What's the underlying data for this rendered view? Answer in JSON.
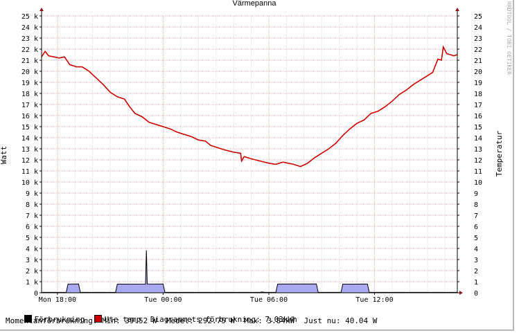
{
  "chart_data": {
    "type": "line",
    "title": "Värmepanna",
    "ylabel_left": "Watt",
    "ylabel_right": "Temperatur",
    "watermark": "RRDTOOL / TOBI OETIKER",
    "x_ticks": [
      "Mon 18:00",
      "Tue 00:00",
      "Tue 06:00",
      "Tue 12:00"
    ],
    "x_tick_hours": [
      18,
      24,
      30,
      36
    ],
    "x_range_hours": [
      17.1,
      40.7
    ],
    "left_axis": {
      "min": 0,
      "max": 25000,
      "step": 1000,
      "labels": [
        "0",
        "1 k",
        "2 k",
        "3 k",
        "4 k",
        "5 k",
        "6 k",
        "7 k",
        "8 k",
        "9 k",
        "10 k",
        "11 k",
        "12 k",
        "13 k",
        "14 k",
        "15 k",
        "16 k",
        "17 k",
        "18 k",
        "19 k",
        "20 k",
        "21 k",
        "22 k",
        "23 k",
        "24 k",
        "25 k"
      ]
    },
    "right_axis": {
      "min": 0,
      "max": 25,
      "step": 1,
      "labels": [
        "0",
        "1",
        "2",
        "3",
        "4",
        "5",
        "6",
        "7",
        "8",
        "9",
        "10",
        "11",
        "12",
        "13",
        "14",
        "15",
        "16",
        "17",
        "18",
        "19",
        "20",
        "21",
        "22",
        "23",
        "24",
        "25"
      ]
    },
    "grid": true,
    "series": [
      {
        "name": "Förbrukning",
        "axis": "left",
        "style": "area",
        "color": "#000000",
        "fill": "#a9a9f0",
        "points": [
          [
            17.1,
            40
          ],
          [
            18.5,
            40
          ],
          [
            18.6,
            780
          ],
          [
            19.2,
            800
          ],
          [
            19.3,
            40
          ],
          [
            21.3,
            40
          ],
          [
            21.4,
            780
          ],
          [
            23.0,
            790
          ],
          [
            23.05,
            3840
          ],
          [
            23.1,
            800
          ],
          [
            24.0,
            790
          ],
          [
            24.1,
            40
          ],
          [
            29.5,
            40
          ],
          [
            29.6,
            80
          ],
          [
            29.8,
            40
          ],
          [
            30.4,
            40
          ],
          [
            30.5,
            790
          ],
          [
            32.7,
            800
          ],
          [
            32.8,
            40
          ],
          [
            34.1,
            40
          ],
          [
            34.2,
            780
          ],
          [
            35.6,
            790
          ],
          [
            35.7,
            40
          ],
          [
            40.7,
            40
          ]
        ]
      },
      {
        "name": "Ute temp",
        "axis": "right",
        "style": "line",
        "color": "#cc0000",
        "points": [
          [
            17.1,
            21.3
          ],
          [
            17.3,
            21.8
          ],
          [
            17.5,
            21.4
          ],
          [
            17.8,
            21.3
          ],
          [
            18.1,
            21.2
          ],
          [
            18.4,
            21.3
          ],
          [
            18.7,
            20.6
          ],
          [
            19.1,
            20.4
          ],
          [
            19.4,
            20.4
          ],
          [
            19.8,
            20.0
          ],
          [
            20.2,
            19.4
          ],
          [
            20.6,
            18.8
          ],
          [
            21.0,
            18.1
          ],
          [
            21.4,
            17.7
          ],
          [
            21.8,
            17.5
          ],
          [
            22.1,
            16.8
          ],
          [
            22.4,
            16.2
          ],
          [
            22.8,
            15.9
          ],
          [
            23.2,
            15.4
          ],
          [
            23.6,
            15.2
          ],
          [
            24.0,
            15.0
          ],
          [
            24.4,
            14.8
          ],
          [
            24.8,
            14.5
          ],
          [
            25.2,
            14.3
          ],
          [
            25.6,
            14.1
          ],
          [
            26.0,
            13.8
          ],
          [
            26.4,
            13.7
          ],
          [
            26.7,
            13.3
          ],
          [
            27.1,
            13.1
          ],
          [
            27.5,
            12.9
          ],
          [
            28.0,
            12.7
          ],
          [
            28.4,
            12.6
          ],
          [
            28.45,
            11.9
          ],
          [
            28.6,
            12.3
          ],
          [
            29.0,
            12.1
          ],
          [
            29.5,
            11.9
          ],
          [
            30.0,
            11.7
          ],
          [
            30.4,
            11.6
          ],
          [
            30.8,
            11.8
          ],
          [
            31.1,
            11.7
          ],
          [
            31.4,
            11.6
          ],
          [
            31.8,
            11.4
          ],
          [
            32.2,
            11.7
          ],
          [
            32.6,
            12.2
          ],
          [
            33.0,
            12.6
          ],
          [
            33.4,
            13.0
          ],
          [
            33.8,
            13.5
          ],
          [
            34.2,
            14.2
          ],
          [
            34.6,
            14.8
          ],
          [
            35.0,
            15.3
          ],
          [
            35.4,
            15.6
          ],
          [
            35.8,
            16.2
          ],
          [
            36.2,
            16.4
          ],
          [
            36.6,
            16.8
          ],
          [
            37.0,
            17.3
          ],
          [
            37.4,
            17.9
          ],
          [
            37.8,
            18.3
          ],
          [
            38.2,
            18.8
          ],
          [
            38.6,
            19.2
          ],
          [
            39.0,
            19.6
          ],
          [
            39.3,
            19.9
          ],
          [
            39.6,
            21.1
          ],
          [
            39.8,
            21.0
          ],
          [
            39.9,
            22.2
          ],
          [
            40.1,
            21.6
          ],
          [
            40.3,
            21.5
          ],
          [
            40.5,
            21.4
          ],
          [
            40.7,
            21.5
          ]
        ]
      }
    ]
  },
  "legend": {
    "forbrukning_label": "Förbrukning",
    "ute_temp_label": "Ute temp",
    "diagram_text": "Diagrammets förbrukning: 7.03kWh",
    "stats_line": "Momentanförbrukning: Min: 39.52 W  Medel: 292.75 W  Max: 3.84kW  Just nu: 40.04 W"
  }
}
